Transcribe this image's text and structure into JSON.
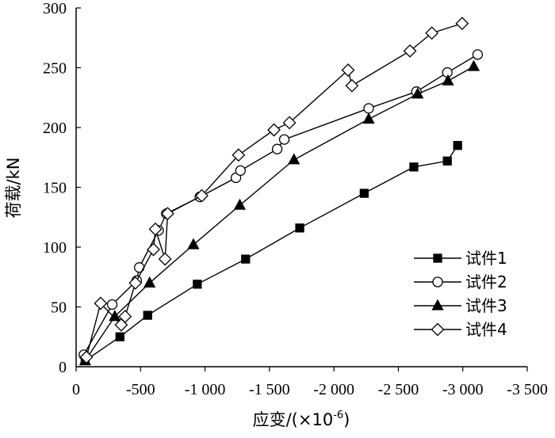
{
  "chart_data": {
    "type": "line",
    "title": "",
    "xlabel": "应变/(×10",
    "xlabel_exp": "-6",
    "xlabel_close": ")",
    "ylabel": "荷载/kN",
    "xlim": [
      0,
      -3500
    ],
    "ylim": [
      0,
      300
    ],
    "xticks": [
      0,
      -500,
      -1000,
      -1500,
      -2000,
      -2500,
      -3000,
      -3500
    ],
    "xtick_labels": [
      "0",
      "-500",
      "-1 000",
      "-1 500",
      "-2 000",
      "-2 500",
      "-3 000",
      "-3 500"
    ],
    "yticks": [
      0,
      50,
      100,
      150,
      200,
      250,
      300
    ],
    "ytick_labels": [
      "0",
      "50",
      "100",
      "150",
      "200",
      "250",
      "300"
    ],
    "grid": false,
    "legend_position": "bottom-right",
    "series": [
      {
        "name": "试件1",
        "marker": "filled-square",
        "x": [
          -70,
          -340,
          -555,
          -940,
          -1315,
          -1735,
          -2235,
          -2620,
          -2880,
          -2960
        ],
        "y": [
          5,
          25,
          43,
          69,
          90,
          116,
          145,
          167,
          172,
          185
        ]
      },
      {
        "name": "试件2",
        "marker": "open-circle",
        "x": [
          -60,
          -280,
          -470,
          -490,
          -640,
          -700,
          -960,
          -1240,
          -1275,
          -1560,
          -1615,
          -2270,
          -2640,
          -2880,
          -3115
        ],
        "y": [
          10,
          52,
          72,
          83,
          114,
          128,
          142,
          158,
          164,
          182,
          190,
          216,
          230,
          246,
          261
        ]
      },
      {
        "name": "试件3",
        "marker": "filled-triangle",
        "x": [
          -70,
          -300,
          -570,
          -910,
          -1270,
          -1690,
          -2270,
          -2650,
          -2885,
          -3085
        ],
        "y": [
          5,
          42,
          70,
          102,
          135,
          173,
          207,
          228,
          239,
          251
        ]
      },
      {
        "name": "试件4",
        "marker": "open-diamond",
        "x": [
          -80,
          -190,
          -350,
          -380,
          -460,
          -600,
          -615,
          -690,
          -710,
          -975,
          -1260,
          -1535,
          -1655,
          -2110,
          -2140,
          -2590,
          -2760,
          -2995
        ],
        "y": [
          8,
          53,
          35,
          42,
          70,
          98,
          115,
          90,
          128,
          143,
          177,
          198,
          204,
          248,
          235,
          264,
          279,
          287
        ]
      }
    ]
  }
}
